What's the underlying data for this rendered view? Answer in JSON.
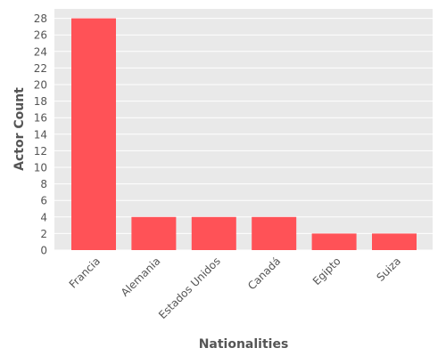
{
  "colors": {
    "plot_bg": "#E9E9E9",
    "grid": "#FFFFFF",
    "bar": "#FF5257",
    "text": "#555555"
  },
  "chart_data": {
    "type": "bar",
    "categories": [
      "Francia",
      "Alemania",
      "Estados Unidos",
      "Canadá",
      "Egipto",
      "Suiza"
    ],
    "values": [
      28,
      4,
      4,
      4,
      2,
      2
    ],
    "title": "",
    "xlabel": "Nationalities",
    "ylabel": "Actor Count",
    "ylim": [
      0,
      29
    ],
    "yticks": [
      0,
      2,
      4,
      6,
      8,
      10,
      12,
      14,
      16,
      18,
      20,
      22,
      24,
      26,
      28
    ],
    "grid": true,
    "legend": "none"
  }
}
